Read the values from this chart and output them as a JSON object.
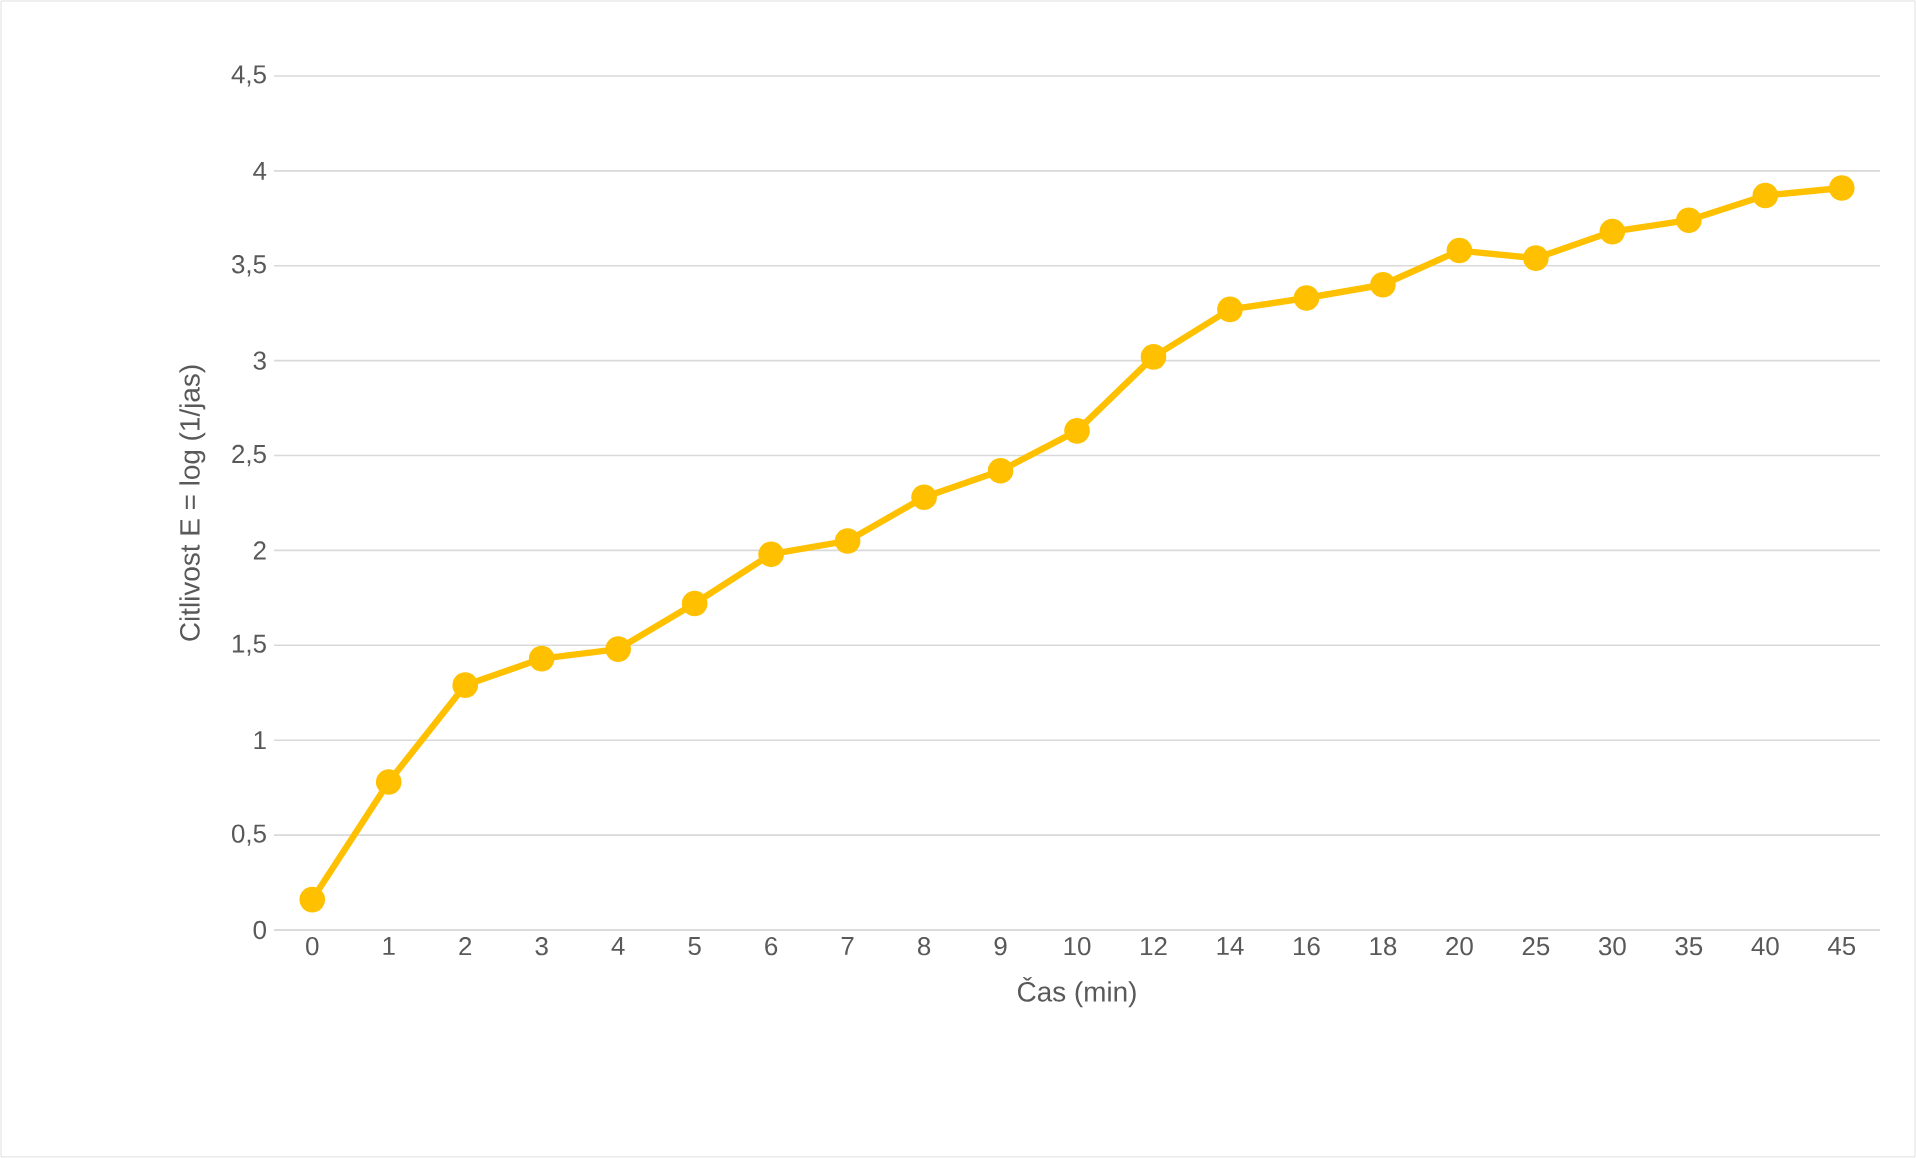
{
  "chart_data": {
    "type": "line",
    "xlabel": "Čas (min)",
    "ylabel": "Citlivost E = log (1/jas)",
    "categories": [
      "0",
      "1",
      "2",
      "3",
      "4",
      "5",
      "6",
      "7",
      "8",
      "9",
      "10",
      "12",
      "14",
      "16",
      "18",
      "20",
      "25",
      "30",
      "35",
      "40",
      "45"
    ],
    "series": [
      {
        "color": "#ffc000",
        "values": [
          0.16,
          0.78,
          1.29,
          1.43,
          1.48,
          1.72,
          1.98,
          2.05,
          2.28,
          2.42,
          2.63,
          3.02,
          3.27,
          3.33,
          3.4,
          3.58,
          3.54,
          3.68,
          3.74,
          3.87,
          3.91
        ]
      }
    ],
    "ylim": [
      0,
      4.5
    ],
    "yticks": [
      0,
      {
        "value": 0.5,
        "label": "0,5"
      },
      1,
      {
        "value": 1.5,
        "label": "1,5"
      },
      2,
      {
        "value": 2.5,
        "label": "2,5"
      },
      3,
      {
        "value": 3.5,
        "label": "3,5"
      },
      4,
      {
        "value": 4.5,
        "label": "4,5"
      }
    ],
    "grid": "y",
    "marker": "circle",
    "line_style": "solid"
  }
}
